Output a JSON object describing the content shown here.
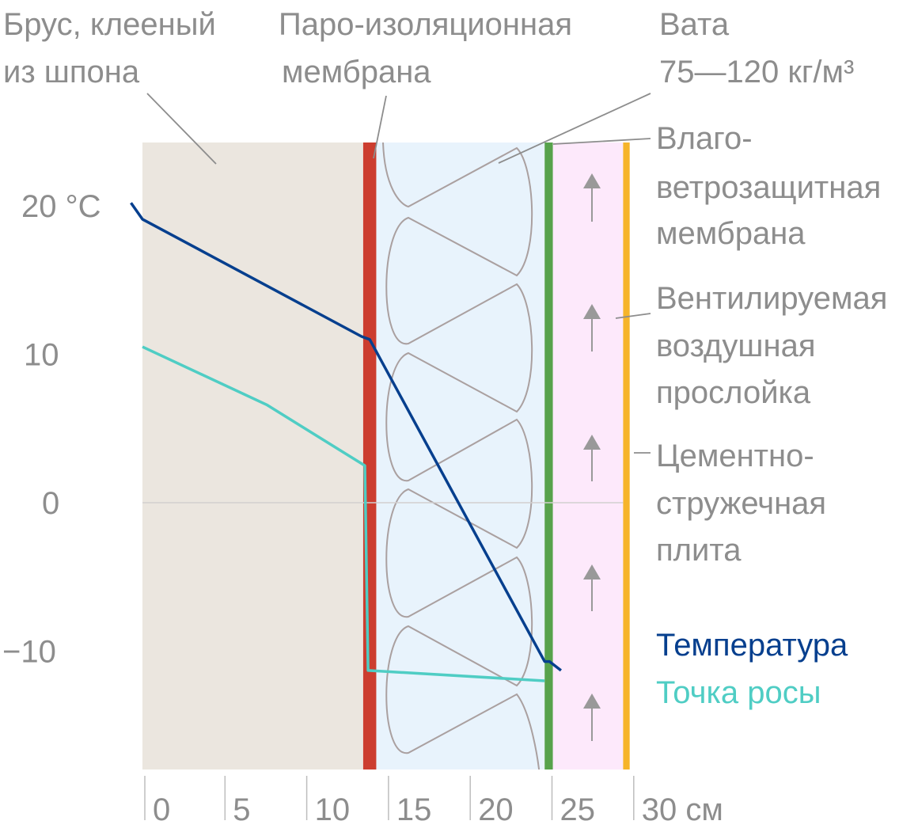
{
  "labels": {
    "brus_1": "Брус, клееный",
    "brus_2": "из шпона",
    "paro_1": "Паро-изоляционная",
    "paro_2": "мембрана",
    "vata_1": "Вата",
    "vata_2": "75—120 кг/м³",
    "vlago_1": "Влаго-",
    "vlago_2": "ветрозащитная",
    "vlago_3": "мембрана",
    "vent_1": "Вентилируемая",
    "vent_2": "воздушная",
    "vent_3": "прослойка",
    "cement_1": "Цементно-",
    "cement_2": "стружечная",
    "cement_3": "плита"
  },
  "legend": {
    "temperature": "Температура",
    "dewpoint": "Точка росы"
  },
  "colors": {
    "wood": "#ebe6df",
    "vapor_barrier": "#cc3d2f",
    "insulation": "#e8f3fc",
    "wind_membrane": "#57a24b",
    "air_gap": "#fde9fb",
    "cement_board": "#f6b42a",
    "temperature": "#063f8e",
    "dewpoint": "#4fcdc4",
    "label": "#8d8d8d"
  },
  "chart_data": {
    "type": "line",
    "x_unit": "см",
    "y_unit": "°C",
    "x_ticks": [
      {
        "value": 0,
        "label": "0"
      },
      {
        "value": 5,
        "label": "5"
      },
      {
        "value": 10,
        "label": "10"
      },
      {
        "value": 15,
        "label": "15"
      },
      {
        "value": 20,
        "label": "20"
      },
      {
        "value": 25,
        "label": "25"
      },
      {
        "value": 30,
        "label": "30 см"
      }
    ],
    "y_ticks": [
      {
        "value": 20,
        "label": "20 °C"
      },
      {
        "value": 10,
        "label": "10"
      },
      {
        "value": 0,
        "label": "0"
      },
      {
        "value": -10,
        "label": "−10"
      }
    ],
    "xlim": [
      0,
      30
    ],
    "ylim": [
      -18.2,
      24.2
    ],
    "layers": [
      {
        "name": "Брус, клееный из шпона",
        "x0": 0,
        "x1": 13.5
      },
      {
        "name": "Паро-изоляционная мембрана",
        "x0": 13.5,
        "x1": 14.3
      },
      {
        "name": "Вата 75—120 кг/м³",
        "x0": 14.3,
        "x1": 24.6
      },
      {
        "name": "Влаго-ветрозащитная мембрана",
        "x0": 24.6,
        "x1": 25.1
      },
      {
        "name": "Вентилируемая воздушная прослойка",
        "x0": 25.1,
        "x1": 29.4
      },
      {
        "name": "Цементно-стружечная плита",
        "x0": 29.4,
        "x1": 29.8
      }
    ],
    "series": [
      {
        "name": "Температура",
        "points": [
          [
            -0.7,
            20.2
          ],
          [
            0,
            19.1
          ],
          [
            13.4,
            11.2
          ],
          [
            13.9,
            11.0
          ],
          [
            24.6,
            -10.7
          ],
          [
            24.9,
            -10.7
          ],
          [
            25.6,
            -11.3
          ]
        ]
      },
      {
        "name": "Точка росы",
        "points": [
          [
            0,
            10.5
          ],
          [
            7.6,
            6.6
          ],
          [
            13.6,
            2.5
          ],
          [
            13.8,
            -11.3
          ],
          [
            24.6,
            -12.0
          ]
        ]
      }
    ]
  }
}
